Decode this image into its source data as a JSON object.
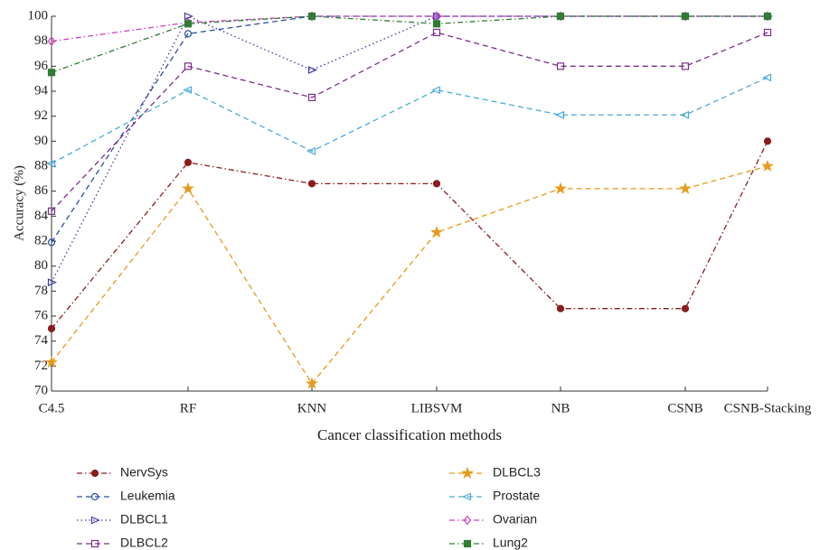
{
  "chart_data": {
    "type": "line",
    "xlabel": "Cancer classification methods",
    "ylabel": "Accuracy (%)",
    "categories": [
      "C4.5",
      "RF",
      "KNN",
      "LIBSVM",
      "NB",
      "CSNB",
      "CSNB-Stacking"
    ],
    "ylim": [
      70,
      100
    ],
    "yticks": [
      70,
      72,
      74,
      76,
      78,
      80,
      82,
      84,
      86,
      88,
      90,
      92,
      94,
      96,
      98,
      100
    ],
    "series": [
      {
        "name": "NervSys",
        "color": "#8b1c1c",
        "line_style": "dashdot",
        "marker": "circle",
        "values": [
          75.0,
          88.3,
          86.6,
          86.6,
          76.6,
          76.6,
          90.0
        ]
      },
      {
        "name": "Leukemia",
        "color": "#2c4fa3",
        "line_style": "dashed",
        "marker": "circle-open",
        "values": [
          81.9,
          98.6,
          100,
          100,
          100,
          100,
          100
        ]
      },
      {
        "name": "DLBCL1",
        "color": "#3b3ba6",
        "line_style": "dotted",
        "marker": "triangle-right",
        "values": [
          78.7,
          100,
          95.7,
          100,
          100,
          100,
          100
        ]
      },
      {
        "name": "DLBCL2",
        "color": "#7b2d8e",
        "line_style": "dashed",
        "marker": "square-open",
        "values": [
          84.4,
          96.0,
          93.5,
          98.7,
          96.0,
          96.0,
          98.7
        ]
      },
      {
        "name": "DLBCL3",
        "color": "#e69a1a",
        "line_style": "dashed",
        "marker": "star",
        "values": [
          72.3,
          86.2,
          70.6,
          82.7,
          86.2,
          86.2,
          88.0
        ]
      },
      {
        "name": "Prostate",
        "color": "#4aaad8",
        "line_style": "dashed",
        "marker": "triangle-left",
        "values": [
          88.2,
          94.1,
          89.2,
          94.1,
          92.1,
          92.1,
          95.1
        ]
      },
      {
        "name": "Ovarian",
        "color": "#d040c0",
        "line_style": "dashdot",
        "marker": "diamond",
        "values": [
          98.0,
          99.5,
          100,
          100,
          100,
          100,
          100
        ]
      },
      {
        "name": "Lung2",
        "color": "#2e7d32",
        "line_style": "dashdot",
        "marker": "square",
        "values": [
          95.5,
          99.4,
          100,
          99.4,
          100,
          100,
          100
        ]
      }
    ]
  }
}
